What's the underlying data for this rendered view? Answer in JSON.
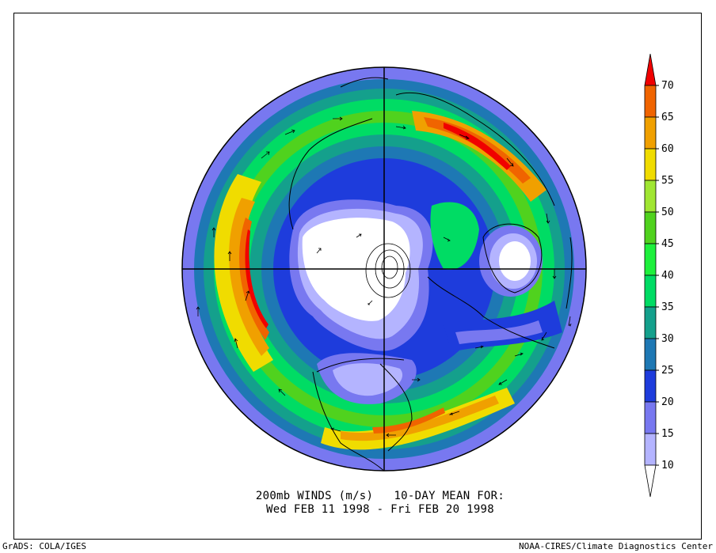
{
  "title": {
    "line1": "200mb WINDS (m/s)   10-DAY MEAN FOR:",
    "line2": "Wed FEB 11 1998 - Fri FEB 20 1998"
  },
  "footer": {
    "left": "GrADS: COLA/IGES",
    "right": "NOAA-CIRES/Climate Diagnostics Center"
  },
  "legend": {
    "bins": [
      {
        "from": 0,
        "to": 10,
        "color": "#ffffff"
      },
      {
        "from": 10,
        "to": 15,
        "color": "#b4b4ff"
      },
      {
        "from": 15,
        "to": 20,
        "color": "#7878f0"
      },
      {
        "from": 20,
        "to": 25,
        "color": "#1e3cdc"
      },
      {
        "from": 25,
        "to": 30,
        "color": "#1e78b4"
      },
      {
        "from": 30,
        "to": 35,
        "color": "#14a08c"
      },
      {
        "from": 35,
        "to": 40,
        "color": "#00dc64"
      },
      {
        "from": 40,
        "to": 45,
        "color": "#1ef03c"
      },
      {
        "from": 45,
        "to": 50,
        "color": "#50d21e"
      },
      {
        "from": 50,
        "to": 55,
        "color": "#a0e632"
      },
      {
        "from": 55,
        "to": 60,
        "color": "#f0dc00"
      },
      {
        "from": 60,
        "to": 65,
        "color": "#f0a000"
      },
      {
        "from": 65,
        "to": 70,
        "color": "#f06400"
      },
      {
        "from": 70,
        "to": 75,
        "color": "#f00000"
      }
    ],
    "labels": [
      "10",
      "15",
      "20",
      "25",
      "30",
      "35",
      "40",
      "45",
      "50",
      "55",
      "60",
      "65",
      "70"
    ]
  }
}
